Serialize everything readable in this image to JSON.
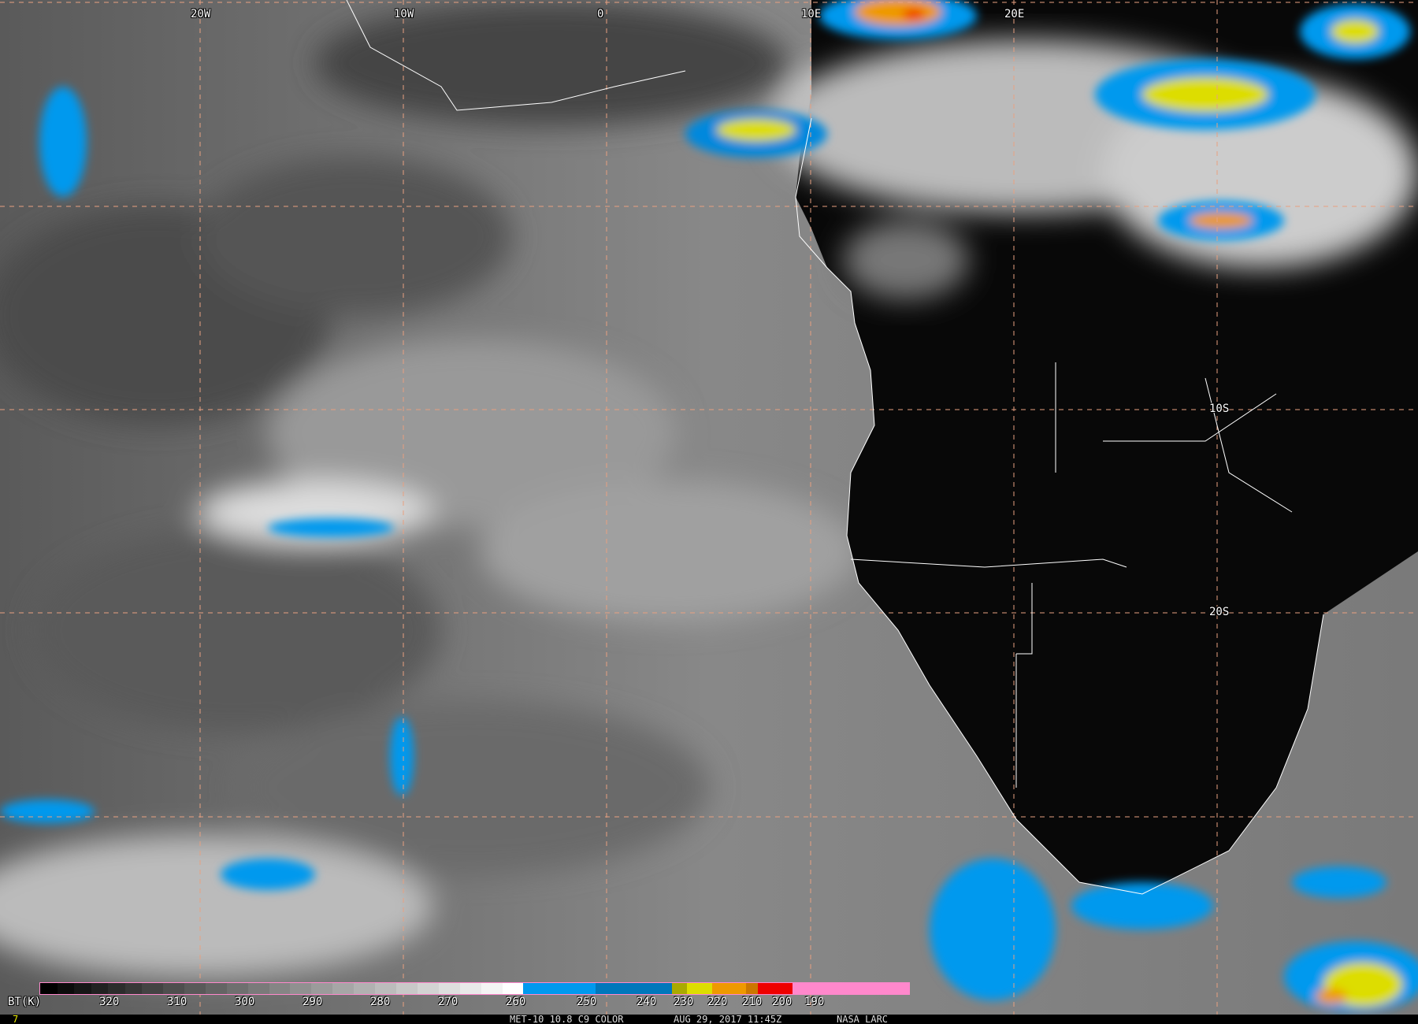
{
  "map": {
    "lon_labels": [
      "20W",
      "10W",
      "0",
      "10E",
      "20E"
    ],
    "lat_labels": [
      "10S",
      "20S"
    ],
    "grid_color": "#e8a080",
    "border_color": "#ffffff"
  },
  "colorbar": {
    "unit_label": "BT(K)",
    "ticks": [
      "320",
      "310",
      "300",
      "290",
      "280",
      "270",
      "260",
      "250",
      "240",
      "230",
      "220",
      "210",
      "200",
      "190"
    ],
    "colors": {
      "cold_low": "#0099ee",
      "cold_mid": "#0077bb",
      "yellow": "#dddd00",
      "orange": "#ee9900",
      "red": "#ee0000",
      "pink": "#ff88cc"
    }
  },
  "footer": {
    "frame_number": "7",
    "product": "MET-10 10.8 C9 COLOR",
    "datetime": "AUG 29, 2017 11:45Z",
    "credit": "NASA LARC"
  }
}
